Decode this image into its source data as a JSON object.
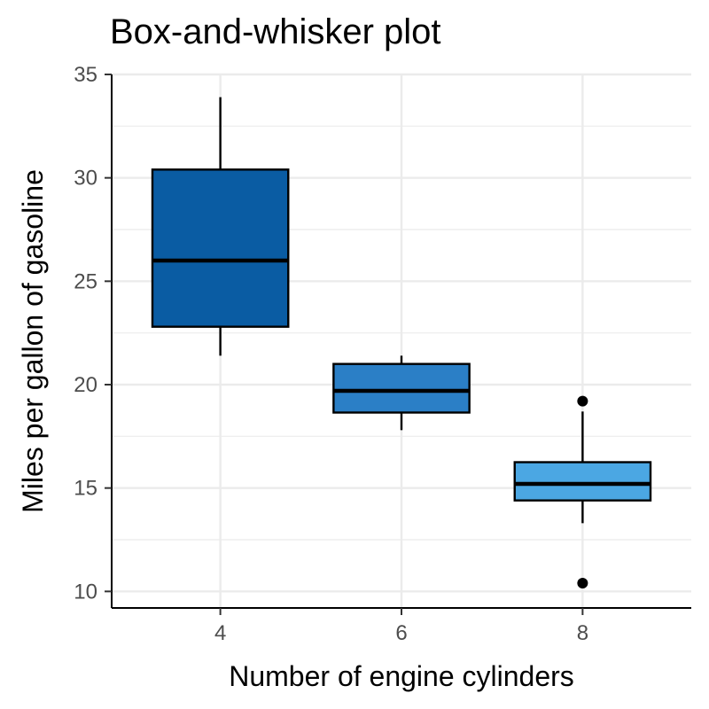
{
  "chart_data": {
    "type": "box",
    "title": "Box-and-whisker plot",
    "xlabel": "Number of engine cylinders",
    "ylabel": "Miles per gallon of gasoline",
    "ylim": [
      9.2,
      35
    ],
    "yticks": [
      10,
      15,
      20,
      25,
      30,
      35
    ],
    "grid": true,
    "categories": [
      "4",
      "6",
      "8"
    ],
    "boxes": [
      {
        "category": "4",
        "whisker_low": 21.4,
        "q1": 22.8,
        "median": 26.0,
        "q3": 30.4,
        "whisker_high": 33.9,
        "outliers": [],
        "fill": "#0A5CA3"
      },
      {
        "category": "6",
        "whisker_low": 17.8,
        "q1": 18.65,
        "median": 19.7,
        "q3": 21.0,
        "whisker_high": 21.4,
        "outliers": [],
        "fill": "#2B7FC6"
      },
      {
        "category": "8",
        "whisker_low": 13.3,
        "q1": 14.4,
        "median": 15.2,
        "q3": 16.25,
        "whisker_high": 18.7,
        "outliers": [
          19.2,
          10.4
        ],
        "fill": "#4BA7E3"
      }
    ],
    "colors": {
      "gridline": "#EBEBEB",
      "outline": "#000000",
      "axis": "#000000"
    }
  }
}
